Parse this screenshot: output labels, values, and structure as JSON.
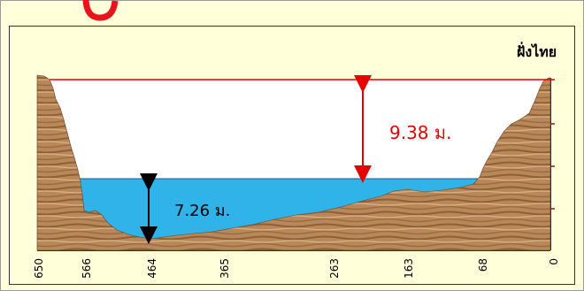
{
  "diagram": {
    "bank_label": "ฝั่งไทย",
    "level_above_water": "9.38 ม.",
    "water_depth": "7.26 ม.",
    "distance_labels": [
      "650",
      "566",
      "464",
      "365",
      "263",
      "163",
      "68",
      "0"
    ]
  },
  "colors": {
    "background": "#ffffd9",
    "water": "#2fb3e8",
    "marker": "#e60000",
    "terrain": "#b8875a"
  }
}
